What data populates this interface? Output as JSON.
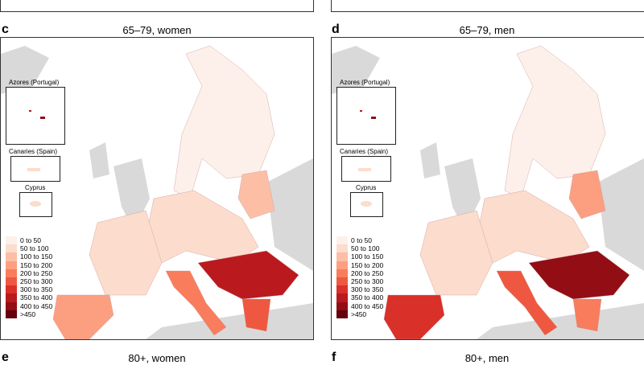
{
  "panels": [
    {
      "letter": "c",
      "title": "65–79, women"
    },
    {
      "letter": "d",
      "title": "65–79, men"
    },
    {
      "letter": "e",
      "title": "80+, women"
    },
    {
      "letter": "f",
      "title": "80+, men"
    }
  ],
  "insets": {
    "azores": "Azores (Portugal)",
    "canaries": "Canaries (Spain)",
    "cyprus": "Cyprus"
  },
  "legend": {
    "labels": [
      "0 to 50",
      "50 to 100",
      "100 to 150",
      "150 to 200",
      "200 to 250",
      "250 to 300",
      "300 to 350",
      "350 to 400",
      "400 to 450",
      ">450"
    ],
    "colors": [
      "#fdf0ea",
      "#fcdccc",
      "#fcbfa6",
      "#fc9f80",
      "#f97c5d",
      "#ef5840",
      "#d9302a",
      "#ba1a1e",
      "#930d15",
      "#65000c"
    ]
  },
  "colors": {
    "non_eu_land": "#d9d9d9",
    "sea": "#ffffff"
  }
}
